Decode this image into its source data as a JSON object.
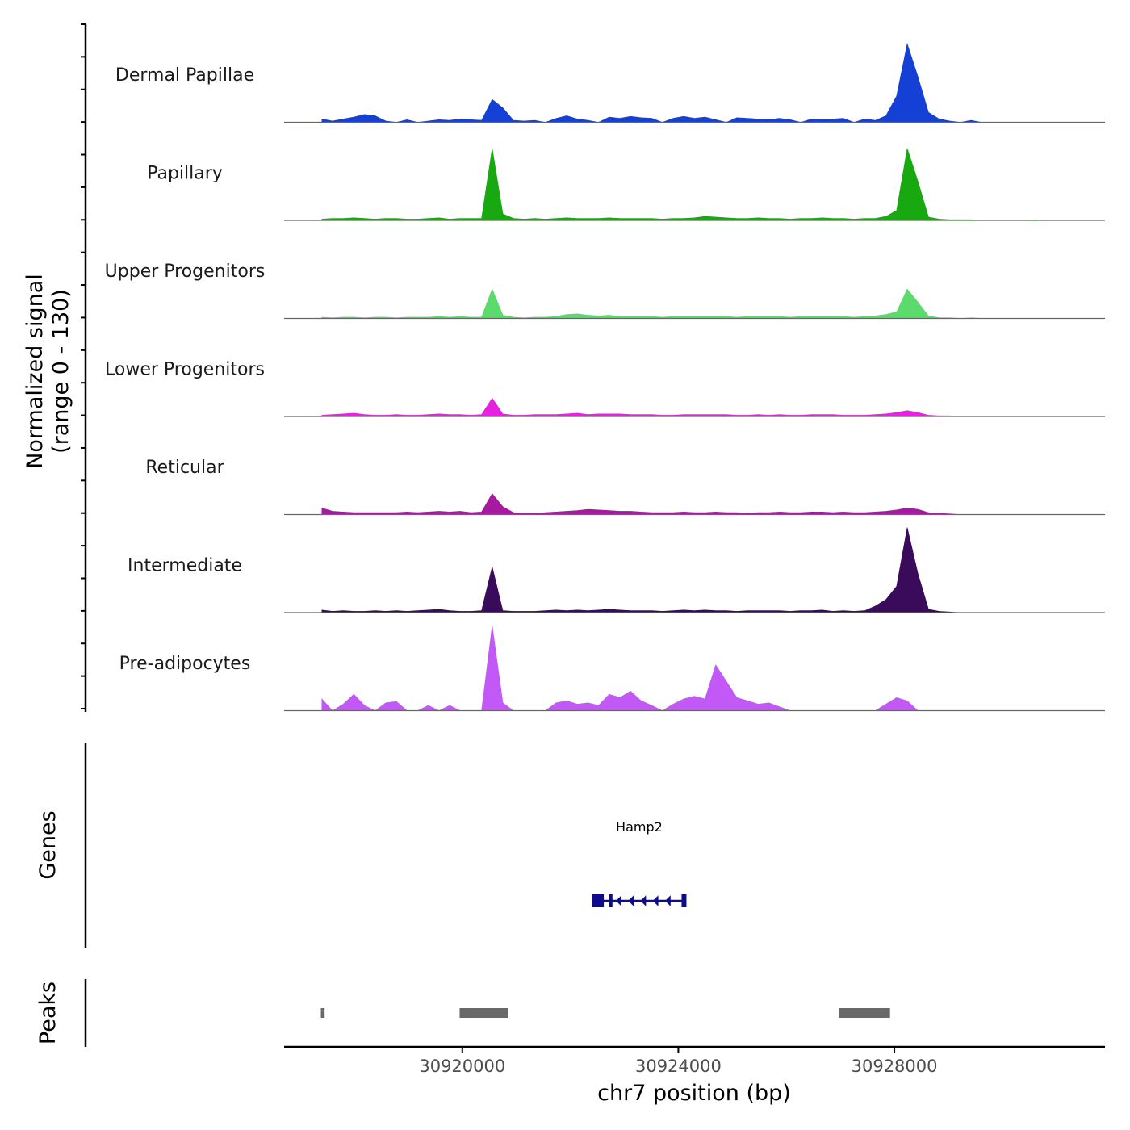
{
  "chart_data": {
    "type": "area",
    "title": "",
    "region": "chr7",
    "xlabel": "chr7 position (bp)",
    "ylabel": "Normalized signal",
    "ylabel_range": "(range 0 - 130)",
    "xlim": [
      30916700,
      30931900
    ],
    "ylim": [
      0,
      130
    ],
    "x_ticks": [
      30920000,
      30924000,
      30928000
    ],
    "x_tick_labels": [
      "30920000",
      "30924000",
      "30928000"
    ],
    "coverage": {
      "profile_start": 30917400,
      "profile_end": 30930800,
      "sample_step_bp": 200,
      "series": [
        {
          "name": "Dermal Papillae",
          "color": "#1540D6",
          "values": [
            5,
            2,
            5,
            8,
            12,
            10,
            2,
            0,
            4,
            0,
            2,
            4,
            3,
            5,
            4,
            3,
            35,
            22,
            3,
            2,
            3,
            0,
            6,
            10,
            5,
            3,
            0,
            8,
            6,
            9,
            7,
            6,
            0,
            6,
            9,
            6,
            8,
            4,
            0,
            7,
            6,
            5,
            4,
            6,
            4,
            0,
            5,
            4,
            5,
            6,
            0,
            5,
            3,
            10,
            40,
            120,
            70,
            15,
            5,
            2,
            0,
            3,
            0,
            0,
            0,
            0,
            0,
            0,
            0
          ]
        },
        {
          "name": "Papillary",
          "color": "#17A90F",
          "values": [
            2,
            3,
            3,
            4,
            3,
            2,
            3,
            3,
            2,
            2,
            3,
            4,
            2,
            3,
            3,
            3,
            110,
            10,
            3,
            2,
            3,
            2,
            3,
            4,
            3,
            3,
            3,
            4,
            3,
            3,
            3,
            3,
            2,
            3,
            3,
            4,
            6,
            5,
            4,
            3,
            3,
            4,
            3,
            3,
            2,
            3,
            3,
            4,
            3,
            3,
            2,
            3,
            3,
            6,
            15,
            110,
            60,
            5,
            2,
            1,
            1,
            1,
            0,
            0,
            0,
            0,
            0,
            1,
            0
          ]
        },
        {
          "name": "Upper Progenitors",
          "color": "#5BDB6E",
          "values": [
            2,
            1,
            2,
            2,
            1,
            2,
            2,
            1,
            2,
            2,
            2,
            3,
            2,
            3,
            2,
            2,
            45,
            5,
            2,
            1,
            2,
            2,
            3,
            6,
            7,
            5,
            4,
            5,
            3,
            3,
            3,
            3,
            2,
            3,
            3,
            4,
            4,
            4,
            3,
            2,
            3,
            3,
            3,
            3,
            2,
            3,
            4,
            4,
            3,
            3,
            2,
            3,
            4,
            6,
            10,
            45,
            25,
            4,
            1,
            1,
            0,
            1,
            0,
            0,
            0,
            0,
            0,
            0,
            0
          ]
        },
        {
          "name": "Lower Progenitors",
          "color": "#E621E0",
          "values": [
            2,
            3,
            4,
            5,
            3,
            2,
            2,
            3,
            2,
            2,
            3,
            4,
            3,
            3,
            2,
            3,
            28,
            4,
            2,
            2,
            3,
            3,
            3,
            4,
            5,
            3,
            4,
            4,
            4,
            3,
            3,
            3,
            2,
            2,
            3,
            3,
            3,
            3,
            3,
            2,
            2,
            3,
            2,
            3,
            2,
            2,
            3,
            3,
            3,
            2,
            2,
            2,
            3,
            4,
            6,
            9,
            6,
            2,
            1,
            1,
            0,
            0,
            0,
            0,
            0,
            0,
            0,
            0,
            0
          ]
        },
        {
          "name": "Reticular",
          "color": "#A51AA1",
          "values": [
            10,
            5,
            4,
            3,
            3,
            3,
            3,
            3,
            4,
            3,
            4,
            5,
            4,
            5,
            3,
            4,
            32,
            12,
            3,
            2,
            2,
            3,
            4,
            5,
            6,
            8,
            7,
            6,
            5,
            5,
            4,
            3,
            3,
            3,
            4,
            3,
            3,
            4,
            3,
            3,
            2,
            3,
            3,
            4,
            3,
            3,
            4,
            4,
            3,
            4,
            3,
            3,
            4,
            5,
            7,
            10,
            8,
            3,
            2,
            1,
            0,
            0,
            0,
            0,
            0,
            0,
            0,
            0,
            0
          ]
        },
        {
          "name": "Intermediate",
          "color": "#3A0B5A",
          "values": [
            4,
            2,
            3,
            2,
            2,
            3,
            2,
            3,
            2,
            3,
            4,
            5,
            3,
            2,
            2,
            3,
            70,
            3,
            2,
            2,
            2,
            3,
            4,
            3,
            4,
            3,
            4,
            5,
            4,
            3,
            3,
            3,
            2,
            3,
            4,
            3,
            4,
            3,
            3,
            2,
            3,
            3,
            3,
            3,
            2,
            3,
            3,
            4,
            2,
            3,
            2,
            3,
            10,
            20,
            40,
            130,
            60,
            5,
            2,
            1,
            0,
            0,
            0,
            0,
            0,
            0,
            0,
            0,
            0
          ]
        },
        {
          "name": "Pre-adipocytes",
          "color": "#C258F5",
          "values": [
            18,
            0,
            10,
            25,
            8,
            0,
            12,
            14,
            0,
            0,
            8,
            0,
            8,
            0,
            0,
            0,
            130,
            12,
            0,
            0,
            0,
            0,
            12,
            15,
            10,
            12,
            8,
            25,
            20,
            30,
            15,
            8,
            0,
            10,
            18,
            22,
            18,
            70,
            45,
            20,
            15,
            10,
            12,
            6,
            0,
            0,
            0,
            0,
            0,
            0,
            0,
            0,
            0,
            10,
            20,
            15,
            0,
            0,
            0,
            0,
            0,
            0,
            0,
            0,
            0,
            0,
            0,
            0,
            0
          ]
        }
      ]
    },
    "genes": [
      {
        "name": "Hamp2",
        "start": 30922400,
        "end": 30924150,
        "strand": "-",
        "color": "#0D0D8C",
        "exons": [
          [
            30922400,
            30922620
          ],
          [
            30922720,
            30922780
          ],
          [
            30924060,
            30924150
          ]
        ]
      }
    ],
    "peaks": [
      {
        "start": 30917380,
        "end": 30917450
      },
      {
        "start": 30919950,
        "end": 30920850
      },
      {
        "start": 30926980,
        "end": 30927920
      }
    ],
    "panel_titles": {
      "genes": "Genes",
      "peaks": "Peaks"
    },
    "colors": {
      "peak": "#696969",
      "baseline": "#666666",
      "axis": "#000000"
    }
  }
}
